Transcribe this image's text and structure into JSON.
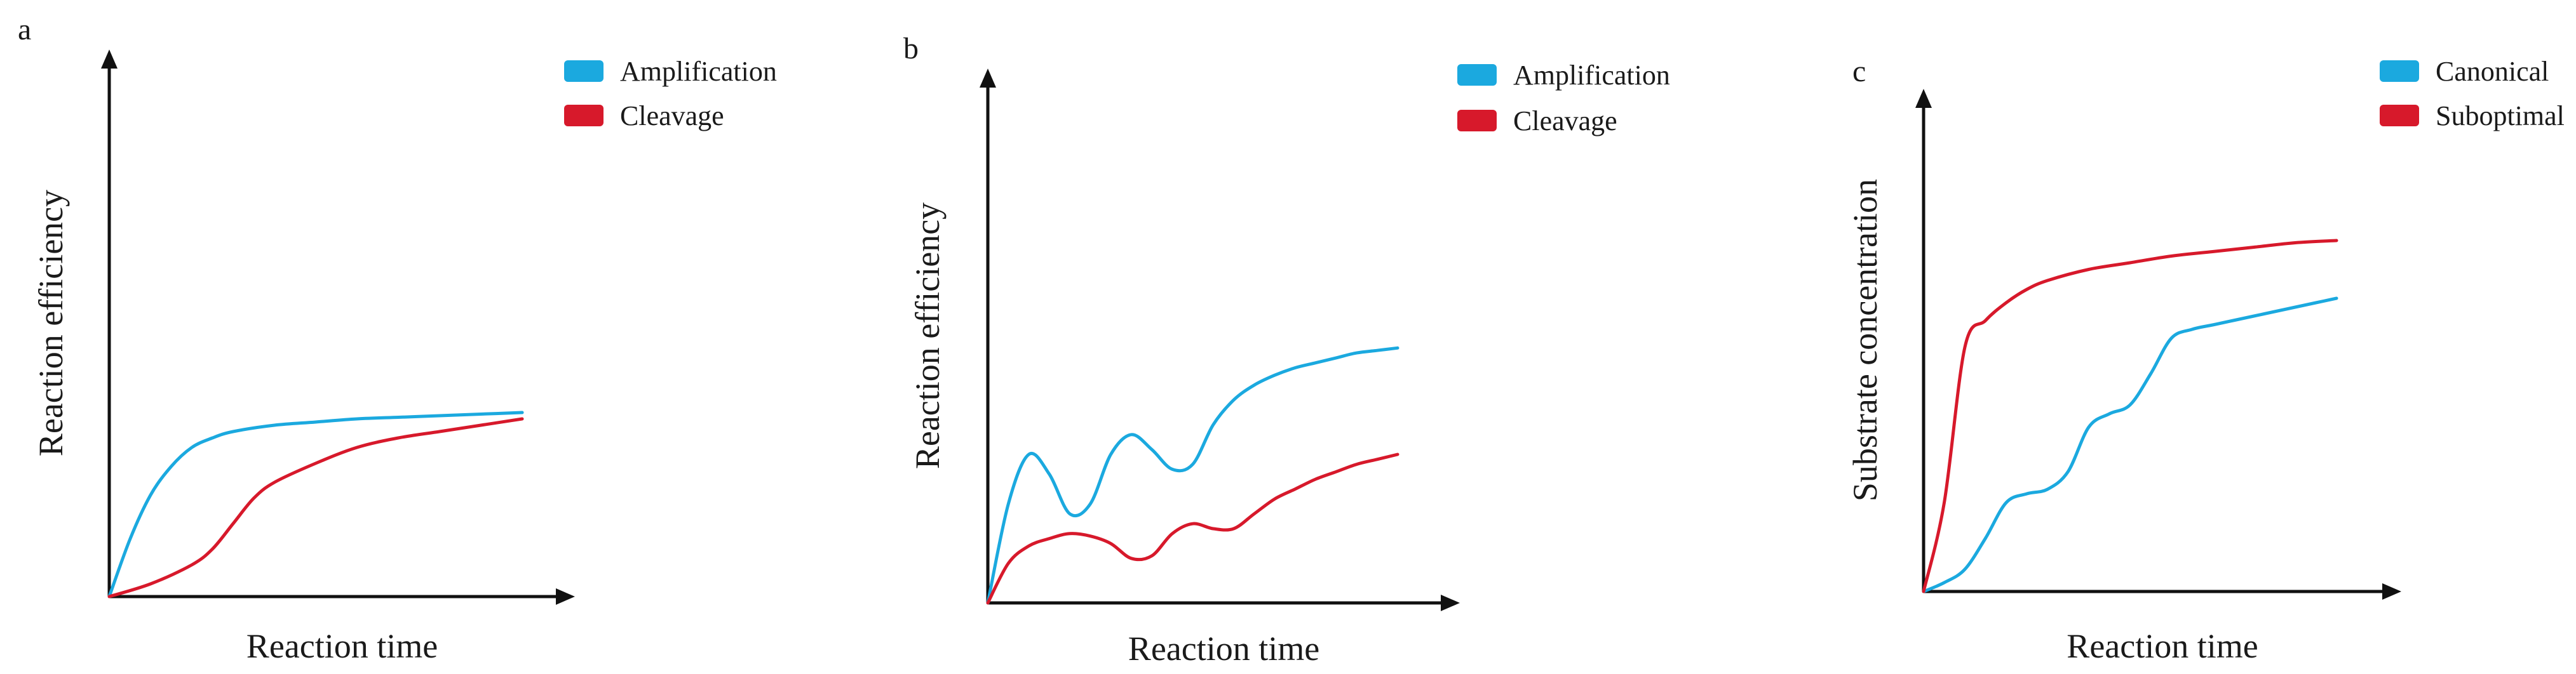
{
  "colors": {
    "blue": "#1ba9df",
    "red": "#d7192b",
    "axis": "#111111"
  },
  "chart_data": [
    {
      "panel": "a",
      "type": "line",
      "title": "",
      "xlabel": "Reaction time",
      "ylabel": "Reaction efficiency",
      "xlim": [
        0,
        100
      ],
      "ylim": [
        0,
        100
      ],
      "grid": false,
      "legend_position": "top-right",
      "series": [
        {
          "name": "Amplification",
          "color": "#1ba9df",
          "x": [
            0,
            5,
            10,
            15,
            20,
            25,
            30,
            40,
            50,
            60,
            70,
            80,
            90,
            100
          ],
          "y": [
            0,
            18,
            32,
            41,
            47,
            50,
            52,
            54,
            55,
            56,
            56.5,
            57,
            57.5,
            58
          ]
        },
        {
          "name": "Cleavage",
          "color": "#d7192b",
          "x": [
            0,
            10,
            20,
            25,
            30,
            35,
            40,
            50,
            60,
            70,
            80,
            90,
            100
          ],
          "y": [
            0,
            4,
            10,
            15,
            23,
            31,
            36,
            42,
            47,
            50,
            52,
            54,
            56
          ]
        }
      ]
    },
    {
      "panel": "b",
      "type": "line",
      "title": "",
      "xlabel": "Reaction time",
      "ylabel": "Reaction efficiency",
      "xlim": [
        0,
        100
      ],
      "ylim": [
        0,
        100
      ],
      "grid": false,
      "legend_position": "top-right",
      "series": [
        {
          "name": "Amplification",
          "color": "#1ba9df",
          "x": [
            0,
            5,
            10,
            15,
            20,
            25,
            30,
            35,
            40,
            45,
            50,
            55,
            60,
            65,
            70,
            75,
            80,
            85,
            90,
            95,
            100
          ],
          "y": [
            0,
            20,
            30,
            26,
            18,
            20,
            30,
            34,
            31,
            27,
            28,
            36,
            41,
            44,
            46,
            47.5,
            48.5,
            49.5,
            50.5,
            51,
            51.5
          ]
        },
        {
          "name": "Cleavage",
          "color": "#d7192b",
          "x": [
            0,
            5,
            10,
            15,
            20,
            25,
            30,
            35,
            40,
            45,
            50,
            55,
            60,
            65,
            70,
            75,
            80,
            85,
            90,
            95,
            100
          ],
          "y": [
            0,
            8,
            11.5,
            13,
            14,
            13.5,
            12,
            9,
            9.5,
            14,
            16,
            15,
            15,
            18,
            21,
            23,
            25,
            26.5,
            28,
            29,
            30
          ]
        }
      ]
    },
    {
      "panel": "c",
      "type": "line",
      "title": "",
      "xlabel": "Reaction time",
      "ylabel": "Substrate concentration",
      "xlim": [
        0,
        100
      ],
      "ylim": [
        0,
        100
      ],
      "grid": false,
      "legend_position": "top-right",
      "series": [
        {
          "name": "Canonical",
          "color": "#1ba9df",
          "x": [
            0,
            5,
            10,
            15,
            20,
            25,
            30,
            35,
            40,
            45,
            50,
            55,
            60,
            65,
            70,
            75,
            80,
            85,
            90,
            95,
            100
          ],
          "y": [
            0,
            2,
            5,
            12,
            20,
            22,
            23,
            27,
            37,
            40,
            42,
            49,
            57,
            59,
            60,
            61,
            62,
            63,
            64,
            65,
            66
          ]
        },
        {
          "name": "Suboptimal",
          "color": "#d7192b",
          "x": [
            0,
            5,
            10,
            15,
            20,
            25,
            30,
            40,
            50,
            60,
            70,
            80,
            90,
            100
          ],
          "y": [
            0,
            20,
            55,
            61,
            65,
            68,
            70,
            72.5,
            74,
            75.5,
            76.5,
            77.5,
            78.5,
            79
          ]
        }
      ]
    }
  ]
}
